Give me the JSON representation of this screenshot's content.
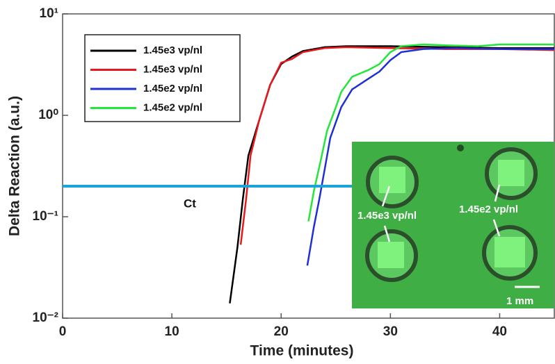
{
  "chart_data": {
    "type": "line",
    "xlabel": "Time (minutes)",
    "ylabel": "Delta Reaction (a.u.)",
    "xlim": [
      0,
      45
    ],
    "xticks": [
      0,
      10,
      20,
      30,
      40
    ],
    "ylim": [
      0.01,
      10
    ],
    "log_y": true,
    "yticks": [
      {
        "value": 0.01,
        "label": "10⁻²"
      },
      {
        "value": 0.1,
        "label": "10⁻¹"
      },
      {
        "value": 1,
        "label": "10⁰"
      },
      {
        "value": 10,
        "label": "10¹"
      }
    ],
    "threshold": {
      "label": "Ct",
      "value": 0.2,
      "color": "#1aa3dd"
    },
    "legend": "upper left",
    "series": [
      {
        "name": "1.45e3 vp/nl",
        "color": "#000000",
        "x": [
          15.3,
          16,
          16.5,
          17,
          18,
          19,
          20,
          21,
          22,
          24,
          26,
          30,
          35,
          40,
          45
        ],
        "values": [
          0.014,
          0.05,
          0.15,
          0.4,
          0.9,
          2.0,
          3.2,
          3.8,
          4.3,
          4.7,
          4.8,
          4.8,
          4.7,
          4.6,
          4.6
        ]
      },
      {
        "name": "1.45e3 vp/nl",
        "color": "#e8191c",
        "x": [
          16.3,
          16.8,
          17.2,
          18,
          19,
          20,
          21,
          22,
          24,
          26,
          30,
          35,
          40,
          45
        ],
        "values": [
          0.053,
          0.15,
          0.4,
          0.9,
          2.0,
          3.3,
          3.6,
          4.2,
          4.6,
          4.7,
          4.6,
          4.5,
          4.5,
          4.4
        ]
      },
      {
        "name": "1.45e2 vp/nl",
        "color": "#1f2fd6",
        "x": [
          22.4,
          23,
          23.5,
          24,
          24.5,
          25.5,
          26.5,
          28,
          29,
          30,
          31,
          33,
          36,
          40,
          45
        ],
        "values": [
          0.033,
          0.08,
          0.15,
          0.3,
          0.6,
          1.2,
          1.8,
          2.3,
          2.7,
          3.5,
          4.2,
          4.5,
          4.6,
          4.5,
          4.5
        ]
      },
      {
        "name": "1.45e2 vp/nl",
        "color": "#22e63a",
        "x": [
          22.5,
          23,
          23.6,
          24.2,
          25,
          25.5,
          26.5,
          28,
          29,
          30,
          31,
          33,
          35,
          38,
          40,
          45
        ],
        "values": [
          0.09,
          0.18,
          0.35,
          0.7,
          1.2,
          1.7,
          2.4,
          2.8,
          3.2,
          4.2,
          4.8,
          5.0,
          4.9,
          4.8,
          5.0,
          5.0
        ]
      }
    ],
    "inset": {
      "labels": [
        "1.45e3 vp/nl",
        "1.45e2 vp/nl"
      ],
      "scale_bar": "1 mm"
    }
  }
}
